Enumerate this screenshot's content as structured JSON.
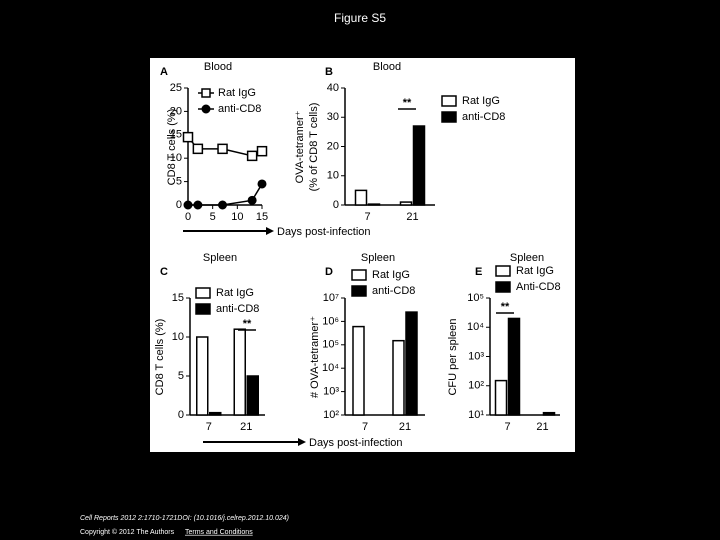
{
  "title": "Figure S5",
  "chart_data": [
    {
      "type": "line",
      "panel": "A",
      "title": "Blood",
      "ylabel": "CD8 T cells (%)",
      "xlabel": "Days post-infection",
      "x": [
        0,
        2,
        7,
        13,
        15
      ],
      "series": [
        {
          "name": "Rat IgG",
          "color": "#ffffff",
          "marker": "square",
          "values": [
            14.5,
            12,
            12,
            10.5,
            11.5
          ]
        },
        {
          "name": "anti-CD8",
          "color": "#000000",
          "marker": "circle",
          "values": [
            0,
            0,
            0,
            1,
            4.5
          ]
        }
      ],
      "xlim": [
        0,
        15
      ],
      "xticks": [
        0,
        5,
        10,
        15
      ],
      "ylim": [
        0,
        25
      ],
      "yticks": [
        0,
        5,
        10,
        15,
        20,
        25
      ]
    },
    {
      "type": "bar",
      "panel": "B",
      "title": "Blood",
      "ylabel": [
        "OVA-tetramer⁺",
        "(% of CD8 T cells)"
      ],
      "annotation": "**",
      "categories": [
        "7",
        "21"
      ],
      "series": [
        {
          "name": "Rat IgG",
          "color": "#ffffff",
          "values": [
            5,
            1
          ]
        },
        {
          "name": "anti-CD8",
          "color": "#000000",
          "values": [
            0.3,
            27
          ]
        }
      ],
      "ylim": [
        0,
        40
      ],
      "yticks": [
        0,
        10,
        20,
        30,
        40
      ]
    },
    {
      "type": "bar",
      "panel": "C",
      "title": "Spleen",
      "ylabel": "CD8 T cells (%)",
      "annotation": "**",
      "categories": [
        "7",
        "21"
      ],
      "series": [
        {
          "name": "Rat IgG",
          "color": "#ffffff",
          "values": [
            10,
            11
          ]
        },
        {
          "name": "anti-CD8",
          "color": "#000000",
          "values": [
            0.3,
            5
          ]
        }
      ],
      "ylim": [
        0,
        15
      ],
      "yticks": [
        0,
        5,
        10,
        15
      ]
    },
    {
      "type": "bar",
      "panel": "D",
      "title": "Spleen",
      "ylabel": "# OVA-tetramer⁺",
      "xlabel": "Days post-infection",
      "log": true,
      "categories": [
        "7",
        "21"
      ],
      "series": [
        {
          "name": "Rat IgG",
          "color": "#ffffff",
          "values": [
            600000,
            150000
          ]
        },
        {
          "name": "anti-CD8",
          "color": "#000000",
          "values": [
            null,
            2500000
          ]
        }
      ],
      "ylim": [
        100,
        10000000
      ],
      "yticks": [
        {
          "value": 100,
          "label": "10²"
        },
        {
          "value": 1000,
          "label": "10³"
        },
        {
          "value": 10000,
          "label": "10⁴"
        },
        {
          "value": 100000,
          "label": "10⁵"
        },
        {
          "value": 1000000,
          "label": "10⁶"
        },
        {
          "value": 10000000,
          "label": "10⁷"
        }
      ]
    },
    {
      "type": "bar",
      "panel": "E",
      "title": "Spleen",
      "ylabel": "CFU per spleen",
      "annotation": "**",
      "log": true,
      "categories": [
        "7",
        "21"
      ],
      "series": [
        {
          "name": "Rat IgG",
          "color": "#ffffff",
          "values": [
            150,
            10
          ]
        },
        {
          "name": "Anti-CD8",
          "color": "#000000",
          "values": [
            20000,
            12
          ]
        }
      ],
      "ylim": [
        10,
        100000
      ],
      "yticks": [
        {
          "value": 10,
          "label": "10¹"
        },
        {
          "value": 100,
          "label": "10²"
        },
        {
          "value": 1000,
          "label": "10³"
        },
        {
          "value": 10000,
          "label": "10⁴"
        },
        {
          "value": 100000,
          "label": "10⁵"
        }
      ]
    }
  ],
  "footer": {
    "citation": "Cell Reports 2012 2:1710-1721DOI: (10.1016/j.celrep.2012.10.024)",
    "copyright": "Copyright © 2012 The Authors",
    "link": "Terms and Conditions"
  }
}
